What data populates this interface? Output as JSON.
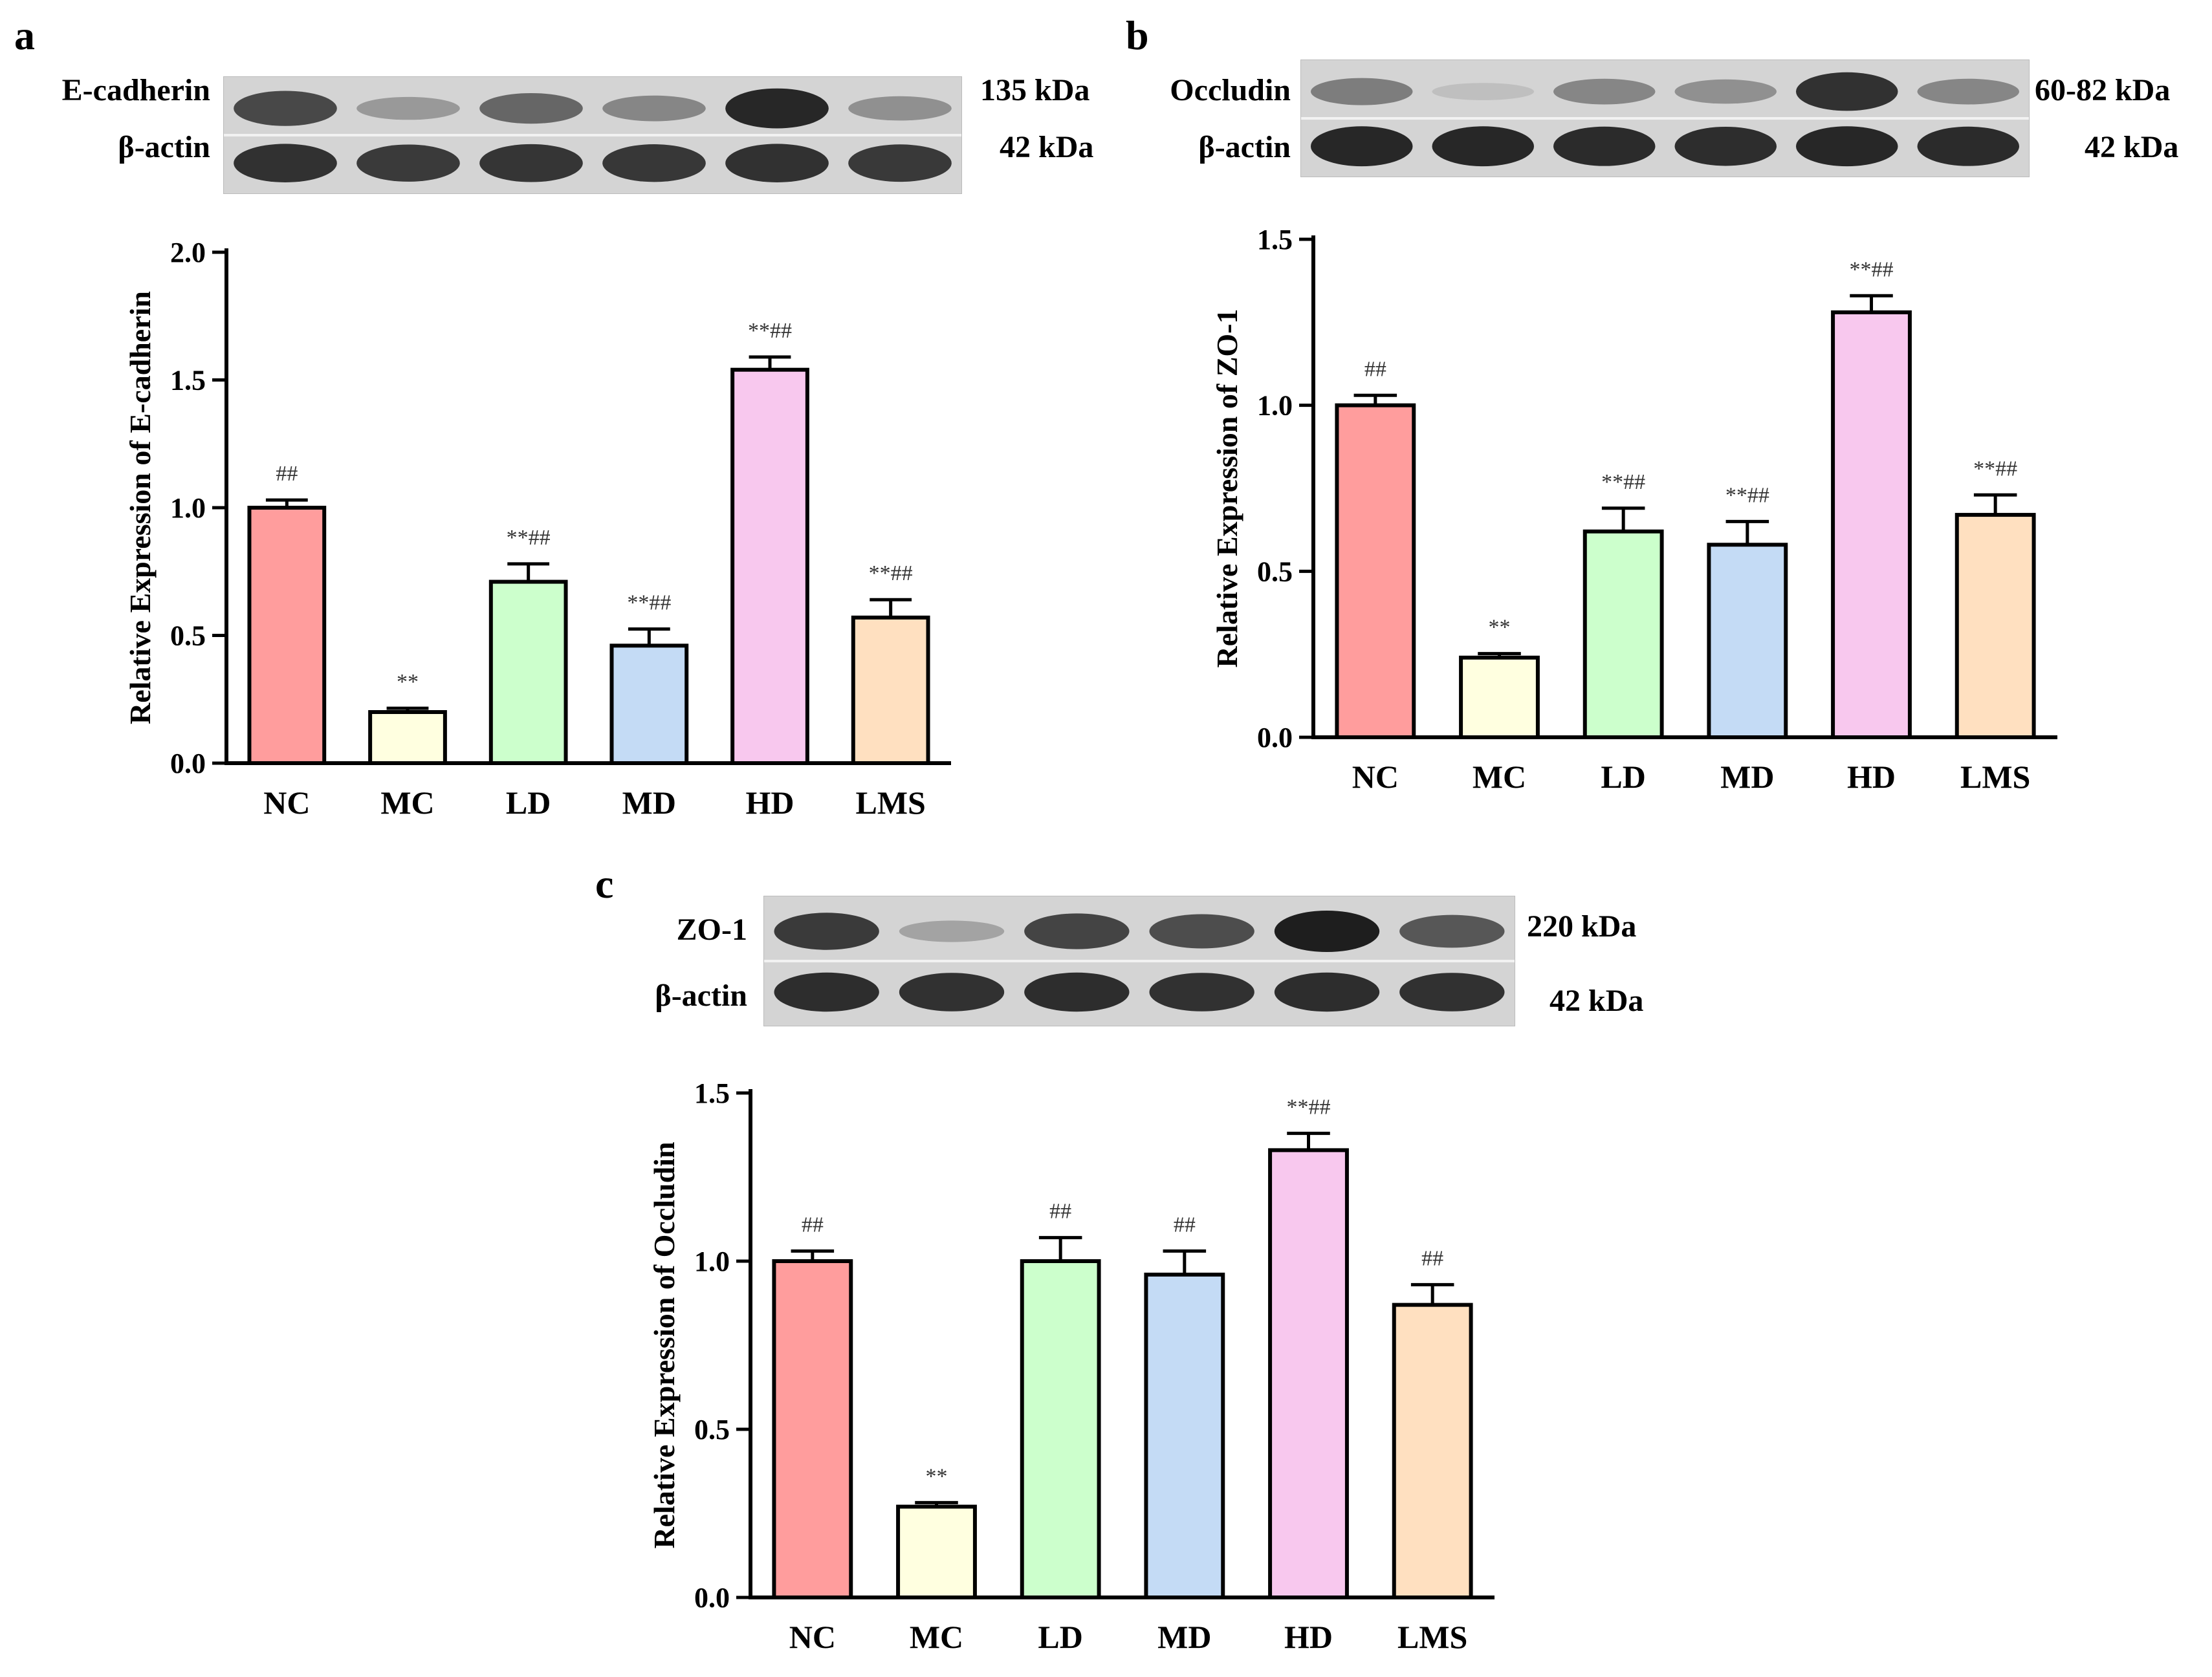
{
  "panels": [
    {
      "letter": "a",
      "blot": {
        "bands": [
          {
            "label": "E-cadherin",
            "size": "135 kDa",
            "intensities": [
              0.78,
              0.35,
              0.62,
              0.45,
              0.95,
              0.4
            ]
          },
          {
            "label": "β-actin",
            "size": "42 kDa",
            "intensities": [
              0.9,
              0.85,
              0.88,
              0.87,
              0.9,
              0.86
            ]
          }
        ]
      },
      "chart_data": {
        "type": "bar",
        "categories": [
          "NC",
          "MC",
          "LD",
          "MD",
          "HD",
          "LMS"
        ],
        "values": [
          1.0,
          0.2,
          0.71,
          0.46,
          1.54,
          0.57
        ],
        "errors": [
          0.03,
          0.015,
          0.07,
          0.065,
          0.05,
          0.07
        ],
        "annotations": [
          "##",
          "**",
          "**##",
          "**##",
          "**##",
          "**##"
        ],
        "ylabel": "Relative Expression of E-cadherin",
        "xlabel": "",
        "ylim": [
          0,
          2.0
        ],
        "yticks": [
          "0.0",
          "0.5",
          "1.0",
          "1.5",
          "2.0"
        ],
        "colors": [
          "#ff9d9d",
          "#ffffe0",
          "#ccffcc",
          "#c4dbf5",
          "#f8c8ee",
          "#ffe0c0"
        ]
      }
    },
    {
      "letter": "b",
      "blot": {
        "bands": [
          {
            "label": "Occludin",
            "size": "60-82  kDa",
            "intensities": [
              0.5,
              0.15,
              0.45,
              0.4,
              0.9,
              0.45
            ]
          },
          {
            "label": "β-actin",
            "size": "42  kDa",
            "intensities": [
              0.95,
              0.95,
              0.93,
              0.92,
              0.95,
              0.93
            ]
          }
        ]
      },
      "chart_data": {
        "type": "bar",
        "categories": [
          "NC",
          "MC",
          "LD",
          "MD",
          "HD",
          "LMS"
        ],
        "values": [
          1.0,
          0.24,
          0.62,
          0.58,
          1.28,
          0.67
        ],
        "errors": [
          0.03,
          0.012,
          0.07,
          0.07,
          0.05,
          0.06
        ],
        "annotations": [
          "##",
          "**",
          "**##",
          "**##",
          "**##",
          "**##"
        ],
        "ylabel": "Relative Expression of ZO-1",
        "xlabel": "",
        "ylim": [
          0,
          1.5
        ],
        "yticks": [
          "0.0",
          "0.5",
          "1.0",
          "1.5"
        ],
        "colors": [
          "#ff9d9d",
          "#ffffe0",
          "#ccffcc",
          "#c4dbf5",
          "#f8c8ee",
          "#ffe0c0"
        ]
      }
    },
    {
      "letter": "c",
      "blot": {
        "bands": [
          {
            "label": "ZO-1",
            "size": "220 kDa",
            "intensities": [
              0.85,
              0.3,
              0.8,
              0.75,
              1.0,
              0.7
            ]
          },
          {
            "label": "β-actin",
            "size": "42 kDa",
            "intensities": [
              0.92,
              0.9,
              0.92,
              0.9,
              0.92,
              0.9
            ]
          }
        ]
      },
      "chart_data": {
        "type": "bar",
        "categories": [
          "NC",
          "MC",
          "LD",
          "MD",
          "HD",
          "LMS"
        ],
        "values": [
          1.0,
          0.27,
          1.0,
          0.96,
          1.33,
          0.87
        ],
        "errors": [
          0.03,
          0.012,
          0.07,
          0.07,
          0.05,
          0.06
        ],
        "annotations": [
          "##",
          "**",
          "##",
          "##",
          "**##",
          "##"
        ],
        "ylabel": "Relative Expression of Occludin",
        "xlabel": "",
        "ylim": [
          0,
          1.5
        ],
        "yticks": [
          "0.0",
          "0.5",
          "1.0",
          "1.5"
        ],
        "colors": [
          "#ff9d9d",
          "#ffffe0",
          "#ccffcc",
          "#c4dbf5",
          "#f8c8ee",
          "#ffe0c0"
        ]
      }
    }
  ]
}
